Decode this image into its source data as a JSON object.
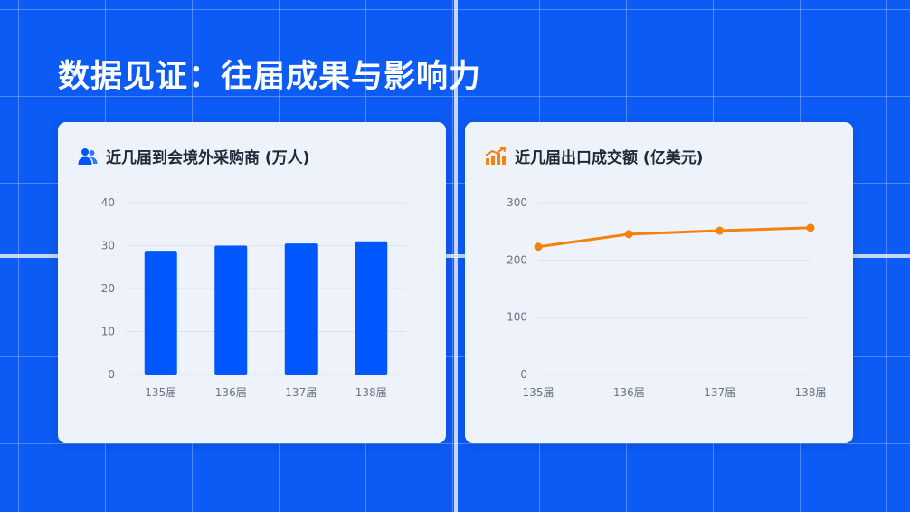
{
  "page": {
    "title": "数据见证：往届成果与影响力"
  },
  "cards": [
    {
      "header": "近几届到会境外采购商 (万人)",
      "icon": "users-icon",
      "accent": "#0057ff"
    },
    {
      "header": "近几届出口成交额 (亿美元)",
      "icon": "bar-chart-trend-icon",
      "accent": "#f5820d"
    }
  ],
  "chart_data": [
    {
      "type": "bar",
      "categories": [
        "135届",
        "136届",
        "137届",
        "138届"
      ],
      "values": [
        28.6,
        30.0,
        30.5,
        31.0
      ],
      "ylim": [
        0,
        40
      ],
      "yticks": [
        0,
        10,
        20,
        30,
        40
      ],
      "grid": true,
      "color": "#0057ff"
    },
    {
      "type": "line",
      "categories": [
        "135届",
        "136届",
        "137届",
        "138届"
      ],
      "values": [
        223,
        245,
        251,
        256
      ],
      "ylim": [
        0,
        300
      ],
      "yticks": [
        0,
        100,
        200,
        300
      ],
      "grid": true,
      "color": "#f5820d"
    }
  ]
}
